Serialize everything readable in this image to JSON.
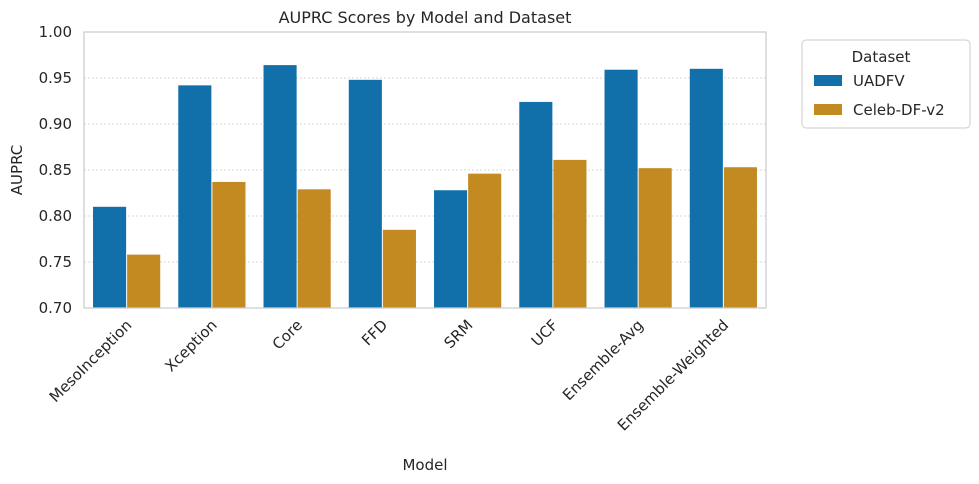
{
  "chart_data": {
    "type": "bar",
    "title": "AUPRC Scores by Model and Dataset",
    "xlabel": "Model",
    "ylabel": "AUPRC",
    "ylim": [
      0.7,
      1.0
    ],
    "yticks": [
      "0.70",
      "0.75",
      "0.80",
      "0.85",
      "0.90",
      "0.95",
      "1.00"
    ],
    "grid": true,
    "legend": {
      "title": "Dataset",
      "placement": "outside-top-right"
    },
    "categories": [
      "MesoInception",
      "Xception",
      "Core",
      "FFD",
      "SRM",
      "UCF",
      "Ensemble-Avg",
      "Ensemble-Weighted"
    ],
    "series": [
      {
        "name": "UADFV",
        "color": "#1170aa",
        "values": [
          0.81,
          0.942,
          0.964,
          0.948,
          0.828,
          0.924,
          0.959,
          0.96
        ]
      },
      {
        "name": "Celeb-DF-v2",
        "color": "#c48a22",
        "values": [
          0.758,
          0.837,
          0.829,
          0.785,
          0.846,
          0.861,
          0.852,
          0.853
        ]
      }
    ]
  }
}
